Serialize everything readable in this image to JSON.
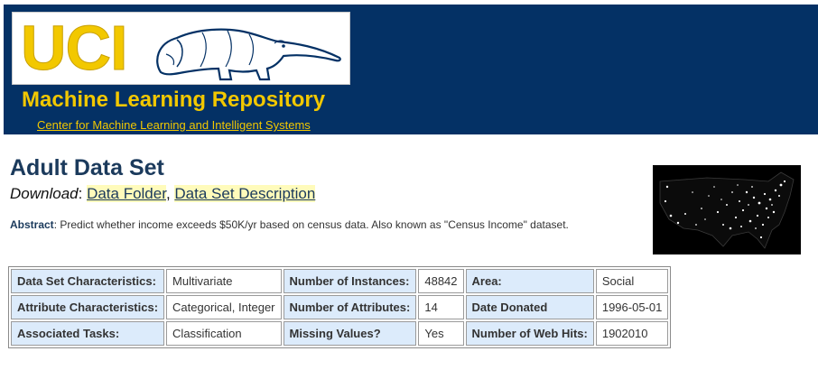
{
  "header": {
    "logo_text": "UCI",
    "repo_title": "Machine Learning Repository",
    "center_link": "Center for Machine Learning and Intelligent Systems",
    "colors": {
      "banner": "#043165",
      "accent": "#f2c800"
    }
  },
  "dataset": {
    "title": "Adult Data Set",
    "download_label": "Download",
    "download_links": [
      "Data Folder",
      "Data Set Description"
    ],
    "abstract_label": "Abstract",
    "abstract_text": ": Predict whether income exceeds $50K/yr based on census data. Also known as \"Census Income\" dataset.",
    "image_icon": "us-night-lights-map"
  },
  "table": {
    "rows": [
      [
        {
          "key": "Data Set Characteristics:",
          "value": "Multivariate"
        },
        {
          "key": "Number of Instances:",
          "value": "48842"
        },
        {
          "key": "Area:",
          "value": "Social"
        }
      ],
      [
        {
          "key": "Attribute Characteristics:",
          "value": "Categorical, Integer"
        },
        {
          "key": "Number of Attributes:",
          "value": "14"
        },
        {
          "key": "Date Donated",
          "value": "1996-05-01"
        }
      ],
      [
        {
          "key": "Associated Tasks:",
          "value": "Classification"
        },
        {
          "key": "Missing Values?",
          "value": "Yes"
        },
        {
          "key": "Number of Web Hits:",
          "value": "1902010"
        }
      ]
    ]
  }
}
